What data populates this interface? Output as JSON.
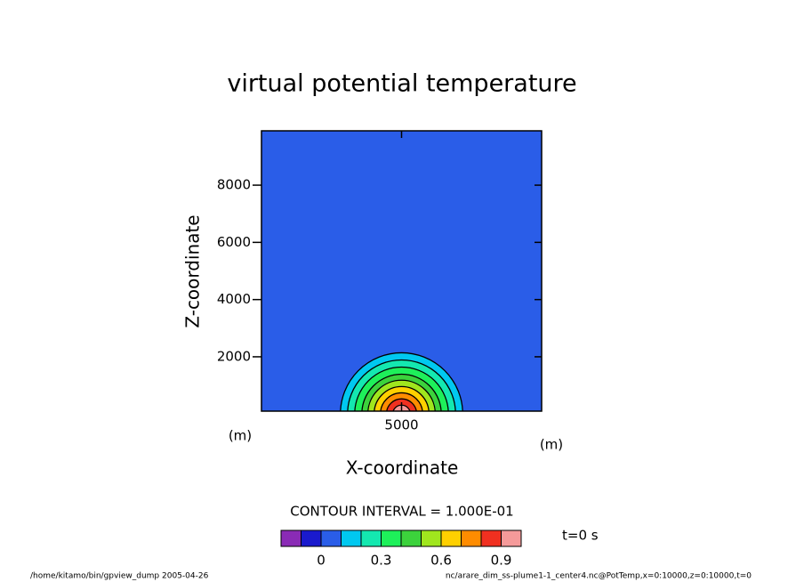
{
  "chart_data": {
    "type": "contour",
    "title": "virtual potential temperature",
    "x_label": "X-coordinate",
    "y_label": "Z-coordinate",
    "x_unit": "(m)",
    "y_unit": "(m)",
    "xlim": [
      100,
      9900
    ],
    "ylim": [
      100,
      9900
    ],
    "xticks": [
      5000
    ],
    "yticks": [
      2000,
      4000,
      6000,
      8000
    ],
    "background_color": "#2a5de8",
    "field_center": {
      "x": 5000,
      "z": 0
    },
    "contours": [
      {
        "level": 0.1,
        "radius": 2140,
        "color": "#00c8f0"
      },
      {
        "level": 0.2,
        "radius": 1890,
        "color": "#14e8b0"
      },
      {
        "level": 0.3,
        "radius": 1640,
        "color": "#1ef05a"
      },
      {
        "level": 0.4,
        "radius": 1390,
        "color": "#3cd23c"
      },
      {
        "level": 0.5,
        "radius": 1180,
        "color": "#a0e61e"
      },
      {
        "level": 0.6,
        "radius": 960,
        "color": "#ffd000"
      },
      {
        "level": 0.7,
        "radius": 740,
        "color": "#ff8c00"
      },
      {
        "level": 0.8,
        "radius": 530,
        "color": "#f03020"
      },
      {
        "level": 0.9,
        "radius": 310,
        "color": "#f59a9a"
      }
    ],
    "contour_interval_text": "CONTOUR INTERVAL = 1.000E-01",
    "time_text": "t=0 s",
    "colorbar": {
      "levels": [
        -0.2,
        -0.1,
        0,
        0.1,
        0.2,
        0.3,
        0.4,
        0.5,
        0.6,
        0.7,
        0.8,
        0.9,
        1.0
      ],
      "colors": [
        "#8a2bb5",
        "#1a1acd",
        "#2a5de8",
        "#00c8f0",
        "#14e8b0",
        "#1ef05a",
        "#3cd23c",
        "#a0e61e",
        "#ffd000",
        "#ff8c00",
        "#f03020",
        "#f59a9a"
      ],
      "ticks": [
        0,
        0.3,
        0.6,
        0.9
      ]
    },
    "footer_left": "/home/kitamo/bin/gpview_dump  2005-04-26",
    "footer_right": "nc/arare_dim_ss-plume1-1_center4.nc@PotTemp,x=0:10000,z=0:10000,t=0"
  }
}
